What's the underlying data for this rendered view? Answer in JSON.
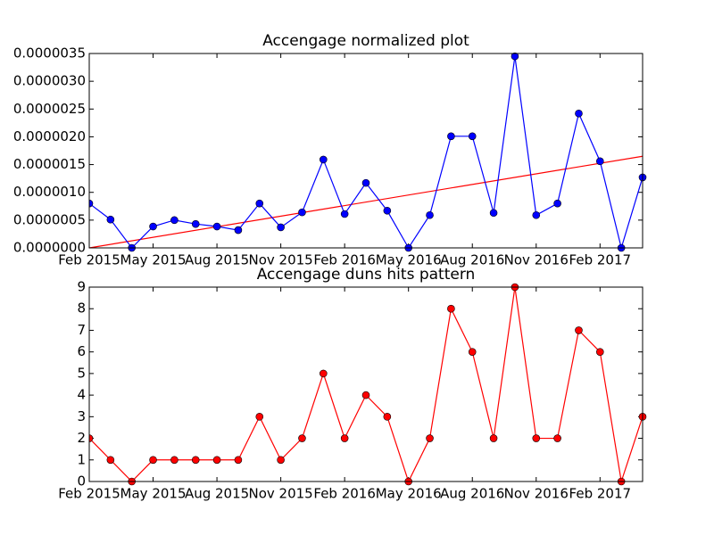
{
  "chart_data": [
    {
      "type": "line",
      "title": "Accengage normalized plot",
      "x": [
        "2015-02",
        "2015-03",
        "2015-04",
        "2015-05",
        "2015-06",
        "2015-07",
        "2015-08",
        "2015-09",
        "2015-10",
        "2015-11",
        "2015-12",
        "2016-01",
        "2016-02",
        "2016-03",
        "2016-04",
        "2016-05",
        "2016-06",
        "2016-07",
        "2016-08",
        "2016-09",
        "2016-10",
        "2016-11",
        "2016-12",
        "2017-01",
        "2017-02",
        "2017-03",
        "2017-04"
      ],
      "series": [
        {
          "color": "#0000ff",
          "values": [
            8e-07,
            5.1e-07,
            0,
            3.85e-07,
            5e-07,
            4.3e-07,
            3.85e-07,
            3.2e-07,
            8e-07,
            3.7e-07,
            6.4e-07,
            1.59e-06,
            6.1e-07,
            1.17e-06,
            6.7e-07,
            0,
            5.9e-07,
            2.01e-06,
            2.01e-06,
            6.3e-07,
            3.45e-06,
            5.9e-07,
            8e-07,
            2.42e-06,
            1.56e-06,
            0,
            1.27e-06
          ]
        }
      ],
      "trend_line": {
        "color": "#ff0000",
        "x": [
          "2015-02",
          "2017-04"
        ],
        "values": [
          0,
          1.65e-06
        ]
      },
      "xlim": [
        "2015-02",
        "2017-04"
      ],
      "xticks": [
        {
          "value": "2015-02",
          "label": "Feb 2015"
        },
        {
          "value": "2015-05",
          "label": "May 2015"
        },
        {
          "value": "2015-08",
          "label": "Aug 2015"
        },
        {
          "value": "2015-11",
          "label": "Nov 2015"
        },
        {
          "value": "2016-02",
          "label": "Feb 2016"
        },
        {
          "value": "2016-05",
          "label": "May 2016"
        },
        {
          "value": "2016-08",
          "label": "Aug 2016"
        },
        {
          "value": "2016-11",
          "label": "Nov 2016"
        },
        {
          "value": "2017-02",
          "label": "Feb 2017"
        }
      ],
      "ylim": [
        0,
        3.5e-06
      ],
      "yticks": [
        {
          "value": 0,
          "label": "0.0000000"
        },
        {
          "value": 5e-07,
          "label": "0.0000005"
        },
        {
          "value": 1e-06,
          "label": "0.0000010"
        },
        {
          "value": 1.5e-06,
          "label": "0.0000015"
        },
        {
          "value": 2e-06,
          "label": "0.0000020"
        },
        {
          "value": 2.5e-06,
          "label": "0.0000025"
        },
        {
          "value": 3e-06,
          "label": "0.0000030"
        },
        {
          "value": 3.5e-06,
          "label": "0.0000035"
        }
      ]
    },
    {
      "type": "line",
      "title": "Accengage duns hits pattern",
      "x": [
        "2015-02",
        "2015-03",
        "2015-04",
        "2015-05",
        "2015-06",
        "2015-07",
        "2015-08",
        "2015-09",
        "2015-10",
        "2015-11",
        "2015-12",
        "2016-01",
        "2016-02",
        "2016-03",
        "2016-04",
        "2016-05",
        "2016-06",
        "2016-07",
        "2016-08",
        "2016-09",
        "2016-10",
        "2016-11",
        "2016-12",
        "2017-01",
        "2017-02",
        "2017-03",
        "2017-04"
      ],
      "series": [
        {
          "color": "#ff0000",
          "values": [
            2,
            1,
            0,
            1,
            1,
            1,
            1,
            1,
            3,
            1,
            2,
            5,
            2,
            4,
            3,
            0,
            2,
            8,
            6,
            2,
            9,
            2,
            2,
            7,
            6,
            0,
            3
          ]
        }
      ],
      "xlim": [
        "2015-02",
        "2017-04"
      ],
      "xticks": [
        {
          "value": "2015-02",
          "label": "Feb 2015"
        },
        {
          "value": "2015-05",
          "label": "May 2015"
        },
        {
          "value": "2015-08",
          "label": "Aug 2015"
        },
        {
          "value": "2015-11",
          "label": "Nov 2015"
        },
        {
          "value": "2016-02",
          "label": "Feb 2016"
        },
        {
          "value": "2016-05",
          "label": "May 2016"
        },
        {
          "value": "2016-08",
          "label": "Aug 2016"
        },
        {
          "value": "2016-11",
          "label": "Nov 2016"
        },
        {
          "value": "2017-02",
          "label": "Feb 2017"
        }
      ],
      "ylim": [
        0,
        9
      ],
      "yticks": [
        0,
        1,
        2,
        3,
        4,
        5,
        6,
        7,
        8,
        9
      ]
    }
  ]
}
